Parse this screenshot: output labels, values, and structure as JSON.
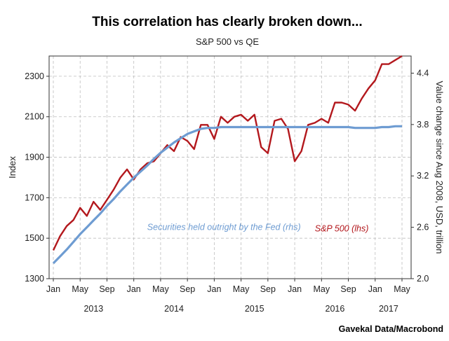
{
  "chart_data": {
    "type": "line",
    "title": "This correlation has clearly broken down...",
    "subtitle": "S&P 500 vs QE",
    "source": "Gavekal Data/Macrobond",
    "ylabel_left": "Index",
    "ylabel_right": "Value change since Aug 2008, USD, trillion",
    "y_left_range": [
      1300,
      2400
    ],
    "y_left_ticks": [
      "1300",
      "1500",
      "1700",
      "1900",
      "2100",
      "2300"
    ],
    "y_right_range": [
      2.0,
      4.6
    ],
    "y_right_ticks": [
      "2.0",
      "2.6",
      "3.2",
      "3.8",
      "4.4"
    ],
    "x_range": [
      "2013-01",
      "2017-05"
    ],
    "x_month_ticks": [
      {
        "label": "Jan",
        "date": "2013-01"
      },
      {
        "label": "May",
        "date": "2013-05"
      },
      {
        "label": "Sep",
        "date": "2013-09"
      },
      {
        "label": "Jan",
        "date": "2014-01"
      },
      {
        "label": "May",
        "date": "2014-05"
      },
      {
        "label": "Sep",
        "date": "2014-09"
      },
      {
        "label": "Jan",
        "date": "2015-01"
      },
      {
        "label": "May",
        "date": "2015-05"
      },
      {
        "label": "Sep",
        "date": "2015-09"
      },
      {
        "label": "Jan",
        "date": "2016-01"
      },
      {
        "label": "May",
        "date": "2016-05"
      },
      {
        "label": "Sep",
        "date": "2016-09"
      },
      {
        "label": "Jan",
        "date": "2017-01"
      },
      {
        "label": "May",
        "date": "2017-05"
      }
    ],
    "x_year_labels": [
      {
        "label": "2013",
        "date": "2013-07"
      },
      {
        "label": "2014",
        "date": "2014-07"
      },
      {
        "label": "2015",
        "date": "2015-07"
      },
      {
        "label": "2016",
        "date": "2016-07"
      },
      {
        "label": "2017",
        "date": "2017-03"
      }
    ],
    "grid": true,
    "series": [
      {
        "name": "S&P 500 (lhs)",
        "axis": "left",
        "color": "#b3181d",
        "x": [
          "2013-01",
          "2013-02",
          "2013-03",
          "2013-04",
          "2013-05",
          "2013-06",
          "2013-07",
          "2013-08",
          "2013-09",
          "2013-10",
          "2013-11",
          "2013-12",
          "2014-01",
          "2014-02",
          "2014-03",
          "2014-04",
          "2014-05",
          "2014-06",
          "2014-07",
          "2014-08",
          "2014-09",
          "2014-10",
          "2014-11",
          "2014-12",
          "2015-01",
          "2015-02",
          "2015-03",
          "2015-04",
          "2015-05",
          "2015-06",
          "2015-07",
          "2015-08",
          "2015-09",
          "2015-10",
          "2015-11",
          "2015-12",
          "2016-01",
          "2016-02",
          "2016-03",
          "2016-04",
          "2016-05",
          "2016-06",
          "2016-07",
          "2016-08",
          "2016-09",
          "2016-10",
          "2016-11",
          "2016-12",
          "2017-01",
          "2017-02",
          "2017-03",
          "2017-04",
          "2017-05"
        ],
        "values": [
          1440,
          1510,
          1560,
          1590,
          1650,
          1610,
          1680,
          1640,
          1690,
          1740,
          1800,
          1840,
          1790,
          1840,
          1870,
          1880,
          1920,
          1960,
          1930,
          2000,
          1980,
          1940,
          2060,
          2060,
          1990,
          2100,
          2070,
          2100,
          2110,
          2080,
          2110,
          1950,
          1920,
          2080,
          2090,
          2040,
          1880,
          1930,
          2060,
          2070,
          2090,
          2070,
          2170,
          2170,
          2160,
          2130,
          2190,
          2240,
          2280,
          2360,
          2360,
          2380,
          2400
        ]
      },
      {
        "name": "Securities held outright by the Fed (rhs)",
        "axis": "right",
        "color": "#6e9cd2",
        "x": [
          "2013-01",
          "2013-02",
          "2013-03",
          "2013-04",
          "2013-05",
          "2013-06",
          "2013-07",
          "2013-08",
          "2013-09",
          "2013-10",
          "2013-11",
          "2013-12",
          "2014-01",
          "2014-02",
          "2014-03",
          "2014-04",
          "2014-05",
          "2014-06",
          "2014-07",
          "2014-08",
          "2014-09",
          "2014-10",
          "2014-11",
          "2014-12",
          "2015-01",
          "2015-02",
          "2015-03",
          "2015-04",
          "2015-05",
          "2015-06",
          "2015-07",
          "2015-08",
          "2015-09",
          "2015-10",
          "2015-11",
          "2015-12",
          "2016-01",
          "2016-02",
          "2016-03",
          "2016-04",
          "2016-05",
          "2016-06",
          "2016-07",
          "2016-08",
          "2016-09",
          "2016-10",
          "2016-11",
          "2016-12",
          "2017-01",
          "2017-02",
          "2017-03",
          "2017-04",
          "2017-05"
        ],
        "values": [
          2.18,
          2.26,
          2.34,
          2.43,
          2.52,
          2.6,
          2.68,
          2.76,
          2.85,
          2.93,
          3.02,
          3.1,
          3.18,
          3.25,
          3.32,
          3.4,
          3.47,
          3.53,
          3.59,
          3.64,
          3.69,
          3.72,
          3.75,
          3.76,
          3.76,
          3.77,
          3.77,
          3.77,
          3.77,
          3.77,
          3.77,
          3.77,
          3.77,
          3.77,
          3.77,
          3.77,
          3.77,
          3.77,
          3.77,
          3.77,
          3.77,
          3.77,
          3.77,
          3.77,
          3.77,
          3.76,
          3.76,
          3.76,
          3.76,
          3.77,
          3.77,
          3.78,
          3.78
        ]
      }
    ],
    "annotations": [
      {
        "text": "Securities held outright by the Fed (rhs)",
        "color": "#6e9cd2",
        "date": "2014-03",
        "axis": "right",
        "value": 2.57
      },
      {
        "text": "S&P 500 (lhs)",
        "color": "#b3181d",
        "date": "2016-04",
        "axis": "right",
        "value": 2.55
      }
    ]
  }
}
